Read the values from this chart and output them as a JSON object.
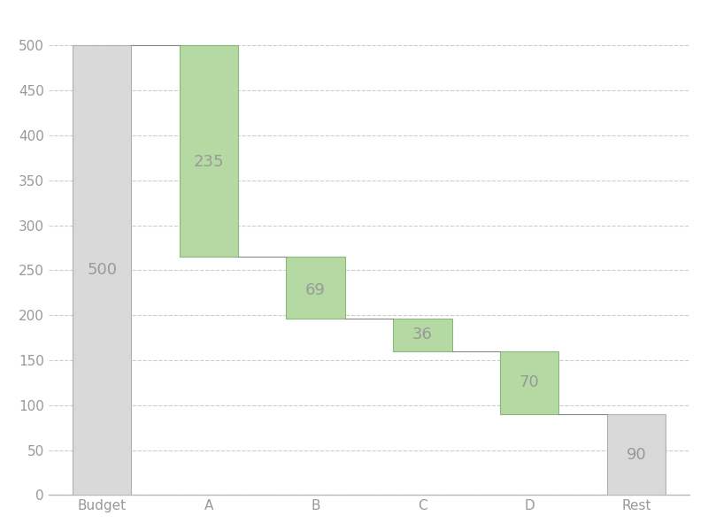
{
  "categories": [
    "Budget",
    "A",
    "B",
    "C",
    "D",
    "Rest"
  ],
  "values": [
    500,
    235,
    69,
    36,
    70,
    90
  ],
  "bar_bottoms": [
    0,
    265,
    196,
    160,
    90,
    0
  ],
  "bar_colors": [
    "#d9d9d9",
    "#b5d9a3",
    "#b5d9a3",
    "#b5d9a3",
    "#b5d9a3",
    "#d9d9d9"
  ],
  "bar_edge_colors": [
    "#b0b0b0",
    "#8ab87a",
    "#8ab87a",
    "#8ab87a",
    "#8ab87a",
    "#b0b0b0"
  ],
  "label_values": [
    500,
    235,
    69,
    36,
    70,
    90
  ],
  "label_positions_y": [
    250,
    370,
    228,
    178,
    125,
    45
  ],
  "ylim": [
    0,
    530
  ],
  "yticks": [
    0,
    50,
    100,
    150,
    200,
    250,
    300,
    350,
    400,
    450,
    500
  ],
  "grid_color": "#cccccc",
  "label_color": "#999999",
  "tick_color": "#999999",
  "spine_color": "#bbbbbb",
  "background_color": "#ffffff",
  "bar_width": 0.55,
  "figsize": [
    8.0,
    6.0
  ],
  "dpi": 100,
  "font_size_labels": 13,
  "font_size_ticks": 11
}
